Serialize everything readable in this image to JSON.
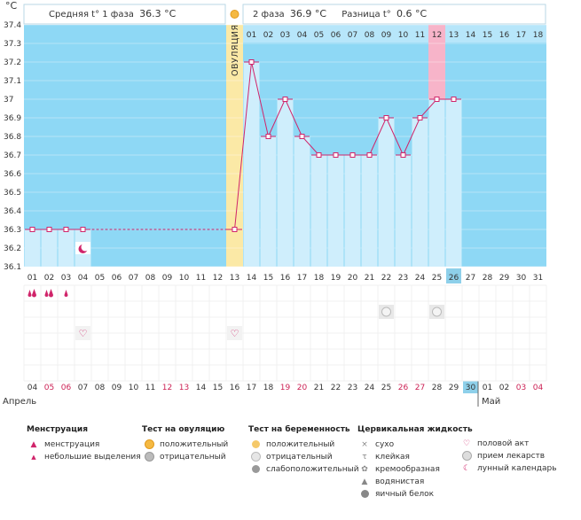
{
  "summary": {
    "phase1_label": "Средняя t° 1 фаза",
    "phase1_value": "36.3 °C",
    "phase2_label": "2 фаза",
    "phase2_value": "36.9 °C",
    "diff_label": "Разница t°",
    "diff_value": "0.6 °C"
  },
  "ovulation_label": "ОВУЛЯЦИЯ",
  "chart_data": {
    "type": "line",
    "ylabel": "°C",
    "ylim": [
      36.1,
      37.4
    ],
    "yticks": [
      "36.1",
      "36.2",
      "36.3",
      "36.4",
      "36.5",
      "36.6",
      "36.7",
      "36.8",
      "36.9",
      "37",
      "37.1",
      "37.2",
      "37.3",
      "37.4"
    ],
    "x": [
      "01",
      "02",
      "03",
      "04",
      "05",
      "06",
      "07",
      "08",
      "09",
      "10",
      "11",
      "12",
      "13",
      "14",
      "15",
      "16",
      "17",
      "18",
      "19",
      "20",
      "21",
      "22",
      "23",
      "24",
      "25",
      "26",
      "27",
      "28",
      "29",
      "30",
      "31"
    ],
    "values": [
      36.3,
      36.3,
      36.3,
      36.3,
      null,
      null,
      null,
      null,
      null,
      null,
      null,
      null,
      36.3,
      37.2,
      36.8,
      37.0,
      36.8,
      36.7,
      36.7,
      36.7,
      36.7,
      36.9,
      36.7,
      36.9,
      37.0,
      37.0,
      null,
      null,
      null,
      null,
      null
    ],
    "phase1_average": 36.3,
    "ovulation_day": 13,
    "phase2_days": [
      "01",
      "02",
      "03",
      "04",
      "05",
      "06",
      "07",
      "08",
      "09",
      "10",
      "11",
      "12",
      "13",
      "14",
      "15",
      "16",
      "17",
      "18"
    ],
    "highlight_phase_day": "12",
    "current_day": "26",
    "moon_day": 4,
    "dates_month1": "Апрель",
    "dates_month2": "Май",
    "dates": [
      {
        "d": "04",
        "red": false
      },
      {
        "d": "05",
        "red": true
      },
      {
        "d": "06",
        "red": true
      },
      {
        "d": "07",
        "red": false
      },
      {
        "d": "08",
        "red": false
      },
      {
        "d": "09",
        "red": false
      },
      {
        "d": "10",
        "red": false
      },
      {
        "d": "11",
        "red": false
      },
      {
        "d": "12",
        "red": true
      },
      {
        "d": "13",
        "red": true
      },
      {
        "d": "14",
        "red": false
      },
      {
        "d": "15",
        "red": false
      },
      {
        "d": "16",
        "red": false
      },
      {
        "d": "17",
        "red": false
      },
      {
        "d": "18",
        "red": false
      },
      {
        "d": "19",
        "red": true
      },
      {
        "d": "20",
        "red": true
      },
      {
        "d": "21",
        "red": false
      },
      {
        "d": "22",
        "red": false
      },
      {
        "d": "23",
        "red": false
      },
      {
        "d": "24",
        "red": false
      },
      {
        "d": "25",
        "red": false
      },
      {
        "d": "26",
        "red": true
      },
      {
        "d": "27",
        "red": true
      },
      {
        "d": "28",
        "red": false
      },
      {
        "d": "29",
        "red": false
      },
      {
        "d": "30",
        "red": false
      },
      {
        "d": "01",
        "red": false
      },
      {
        "d": "02",
        "red": false
      },
      {
        "d": "03",
        "red": true
      },
      {
        "d": "04",
        "red": true
      }
    ],
    "today_index": 26,
    "menstruation": [
      {
        "day": 1,
        "size": "big"
      },
      {
        "day": 2,
        "size": "big"
      },
      {
        "day": 3,
        "size": "small"
      }
    ],
    "pregnancy_tests": [
      22,
      25
    ],
    "intercourse": [
      4,
      13
    ],
    "colors": {
      "chart_bg": "#8ed8f5",
      "bar_fill": "#cfeefc",
      "line": "#d0246a",
      "ovulation_band": "#fbe9a6",
      "highlight": "#f7b4c9",
      "today": "#8ed0ea",
      "red_text": "#cc2255"
    }
  },
  "legend": {
    "menstruation": {
      "title": "Менструация",
      "items": [
        "менструация",
        "небольшие выделения"
      ]
    },
    "ovulation_test": {
      "title": "Тест на овуляцию",
      "items": [
        "положительный",
        "отрицательный"
      ]
    },
    "pregnancy_test": {
      "title": "Тест на беременность",
      "items": [
        "положительный",
        "отрицательный",
        "слабоположительный"
      ]
    },
    "cervical": {
      "title": "Цервикальная жидкость",
      "items": [
        "сухо",
        "клейкая",
        "кремообразная",
        "водянистая",
        "яичный белок"
      ]
    },
    "other": {
      "items": [
        "половой акт",
        "прием лекарств",
        "лунный календарь"
      ]
    }
  }
}
